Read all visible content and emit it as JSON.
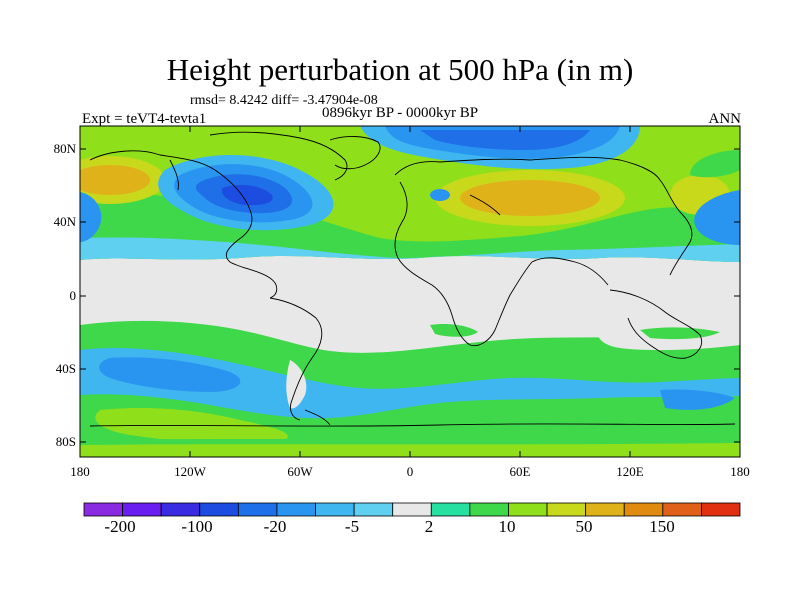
{
  "header": {
    "title": "Height perturbation at 500 hPa (in m)",
    "stats": "rmsd= 8.4242 diff= -3.47904e-08",
    "period": "0896kyr BP - 0000kyr BP",
    "expt": "Expt = teVT4-tevta1",
    "season": "ANN"
  },
  "axes": {
    "lat_labels": [
      "80N",
      "40N",
      "0",
      "40S",
      "80S"
    ],
    "lon_labels": [
      "180",
      "120W",
      "60W",
      "0",
      "60E",
      "120E",
      "180"
    ]
  },
  "colorbar": {
    "colors": [
      "#8a2be2",
      "#6a1ff0",
      "#3a2ce0",
      "#1d4de0",
      "#1f6fe8",
      "#2a95f0",
      "#3fb6f0",
      "#60d0f0",
      "#e8e8e8",
      "#25e0a0",
      "#3fd84a",
      "#8fe01a",
      "#c8d81a",
      "#e0b21a",
      "#e08a10",
      "#e0601a",
      "#e03010"
    ],
    "labels": [
      "-200",
      "-100",
      "-20",
      "-5",
      "2",
      "10",
      "50",
      "150"
    ]
  }
}
